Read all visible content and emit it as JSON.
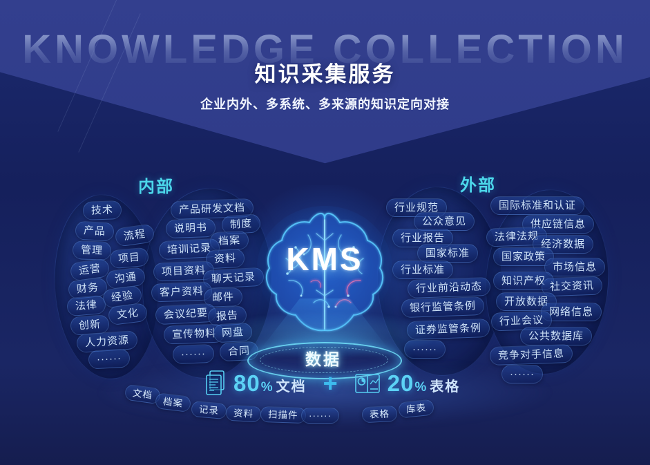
{
  "page": {
    "watermark": "KNOWLEDGE COLLECTION",
    "title": "知识采集服务",
    "subtitle": "企业内外、多系统、多来源的知识定向对接"
  },
  "center": {
    "system_label": "KMS",
    "platform_label": "数据"
  },
  "internal": {
    "heading": "内部",
    "col1": [
      "技术",
      "产品",
      "流程",
      "管理",
      "项目",
      "运营",
      "沟通",
      "财务",
      "经验",
      "法律",
      "文化",
      "创新",
      "人力资源",
      "······"
    ],
    "col2": [
      "产品研发文档",
      "说明书",
      "制度",
      "档案",
      "培训记录",
      "资料",
      "项目资料",
      "聊天记录",
      "客户资料",
      "邮件",
      "会议纪要",
      "报告",
      "宣传物料",
      "网盘",
      "合同",
      "······"
    ]
  },
  "external": {
    "heading": "外部",
    "col1": [
      "行业规范",
      "公众意见",
      "行业报告",
      "国家标准",
      "行业标准",
      "行业前沿动态",
      "银行监管条例",
      "证券监管条例",
      "······"
    ],
    "col2": [
      "国际标准和认证",
      "供应链信息",
      "法律法规",
      "经济数据",
      "国家政策",
      "市场信息",
      "知识产权",
      "社交资讯",
      "开放数据",
      "网络信息",
      "行业会议",
      "公共数据库",
      "竞争对手信息",
      "······"
    ]
  },
  "data_composition": {
    "documents": {
      "value": "80",
      "unit": "%",
      "label": "文档"
    },
    "plus_sign": "+",
    "tables": {
      "value": "20",
      "unit": "%",
      "label": "表格"
    }
  },
  "bottom_tags": [
    "文档",
    "档案",
    "记录",
    "资料",
    "扫描件",
    "······",
    "表格",
    "库表"
  ],
  "colors": {
    "accent_cyan": "#4cd7ea",
    "number_cyan": "#5cd2f5",
    "bg_top": "#2d3a87",
    "bg_dark": "#18245e",
    "tag_text": "#cde1f6",
    "ring_glow": "#73e6ff"
  }
}
